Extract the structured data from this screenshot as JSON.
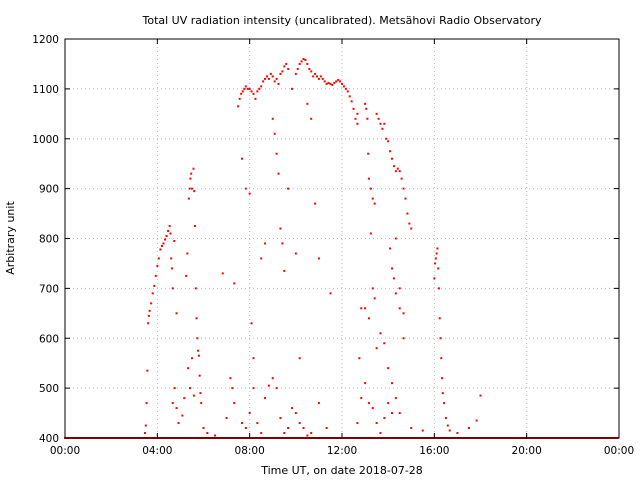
{
  "chart_data": {
    "type": "scatter",
    "title": "Total UV radiation intensity (uncalibrated). Metsähovi Radio Observatory",
    "xlabel": "Time UT, on date 2018-07-28",
    "ylabel": "Arbitrary unit",
    "xlim": [
      "00:00",
      "24:00"
    ],
    "ylim": [
      400,
      1200
    ],
    "x_tick_labels": [
      "00:00",
      "04:00",
      "08:00",
      "12:00",
      "16:00",
      "20:00",
      "00:00"
    ],
    "y_tick_labels": [
      "400",
      "500",
      "600",
      "700",
      "800",
      "900",
      "1000",
      "1100",
      "1200"
    ],
    "grid": true,
    "legend": "none",
    "marker_color": "#ff0000",
    "series": [
      {
        "baseline": [
          [
            "00:00",
            400
          ],
          [
            "03:40",
            400
          ],
          [
            "04:00",
            400
          ],
          [
            "04:20",
            400
          ],
          [
            "05:00",
            400
          ],
          [
            "06:00",
            400
          ],
          [
            "07:00",
            400
          ],
          [
            "08:00",
            400
          ],
          [
            "09:00",
            400
          ],
          [
            "10:00",
            400
          ],
          [
            "11:00",
            400
          ],
          [
            "12:00",
            400
          ],
          [
            "13:00",
            400
          ],
          [
            "14:00",
            400
          ],
          [
            "15:00",
            400
          ],
          [
            "16:00",
            400
          ],
          [
            "17:00",
            400
          ],
          [
            "18:00",
            400
          ],
          [
            "19:00",
            400
          ],
          [
            "20:00",
            400
          ],
          [
            "21:00",
            400
          ],
          [
            "22:00",
            400
          ],
          [
            "23:00",
            400
          ],
          [
            "24:00",
            400
          ]
        ],
        "rise": [
          [
            "03:28",
            410
          ],
          [
            "03:30",
            425
          ],
          [
            "03:32",
            470
          ],
          [
            "03:34",
            535
          ],
          [
            "03:36",
            630
          ],
          [
            "03:38",
            645
          ],
          [
            "03:40",
            655
          ],
          [
            "03:44",
            670
          ],
          [
            "03:48",
            690
          ],
          [
            "03:52",
            705
          ],
          [
            "03:56",
            725
          ],
          [
            "04:00",
            745
          ],
          [
            "04:04",
            760
          ],
          [
            "04:08",
            778
          ],
          [
            "04:12",
            785
          ],
          [
            "04:16",
            790
          ],
          [
            "04:20",
            798
          ],
          [
            "04:24",
            805
          ],
          [
            "04:28",
            815
          ],
          [
            "04:32",
            825
          ],
          [
            "04:34",
            810
          ],
          [
            "04:36",
            760
          ],
          [
            "04:38",
            740
          ],
          [
            "04:40",
            700
          ],
          [
            "04:44",
            795
          ],
          [
            "04:50",
            650
          ]
        ],
        "mid_morning": [
          [
            "05:15",
            725
          ],
          [
            "05:18",
            770
          ],
          [
            "05:22",
            880
          ],
          [
            "05:24",
            900
          ],
          [
            "05:26",
            920
          ],
          [
            "05:28",
            930
          ],
          [
            "05:30",
            900
          ],
          [
            "05:34",
            940
          ],
          [
            "05:36",
            895
          ],
          [
            "05:38",
            825
          ],
          [
            "05:40",
            700
          ],
          [
            "05:42",
            640
          ],
          [
            "05:44",
            600
          ],
          [
            "05:46",
            575
          ],
          [
            "05:48",
            565
          ],
          [
            "05:50",
            525
          ],
          [
            "05:52",
            490
          ],
          [
            "05:54",
            470
          ],
          [
            "05:20",
            540
          ],
          [
            "05:30",
            560
          ],
          [
            "05:10",
            480
          ],
          [
            "05:05",
            445
          ],
          [
            "04:55",
            430
          ],
          [
            "04:45",
            500
          ],
          [
            "04:40",
            470
          ],
          [
            "04:50",
            460
          ],
          [
            "05:25",
            500
          ],
          [
            "05:35",
            485
          ]
        ],
        "main_arc": [
          [
            "07:30",
            1065
          ],
          [
            "07:34",
            1080
          ],
          [
            "07:38",
            1090
          ],
          [
            "07:42",
            1095
          ],
          [
            "07:46",
            1100
          ],
          [
            "07:50",
            1105
          ],
          [
            "07:55",
            1100
          ],
          [
            "08:00",
            1100
          ],
          [
            "08:05",
            1095
          ],
          [
            "08:10",
            1090
          ],
          [
            "08:15",
            1080
          ],
          [
            "08:20",
            1095
          ],
          [
            "08:25",
            1100
          ],
          [
            "08:30",
            1105
          ],
          [
            "08:35",
            1115
          ],
          [
            "08:40",
            1120
          ],
          [
            "08:45",
            1125
          ],
          [
            "08:50",
            1120
          ],
          [
            "08:55",
            1130
          ],
          [
            "09:00",
            1125
          ],
          [
            "09:05",
            1115
          ],
          [
            "09:10",
            1120
          ],
          [
            "09:15",
            1110
          ],
          [
            "09:20",
            1130
          ],
          [
            "09:25",
            1135
          ],
          [
            "09:30",
            1145
          ],
          [
            "09:35",
            1150
          ],
          [
            "09:40",
            1140
          ],
          [
            "09:50",
            1100
          ],
          [
            "10:00",
            1130
          ],
          [
            "10:05",
            1140
          ],
          [
            "10:10",
            1150
          ],
          [
            "10:15",
            1155
          ],
          [
            "10:20",
            1160
          ],
          [
            "10:25",
            1158
          ],
          [
            "10:30",
            1150
          ],
          [
            "10:35",
            1140
          ],
          [
            "10:40",
            1135
          ],
          [
            "10:45",
            1125
          ],
          [
            "10:50",
            1130
          ],
          [
            "10:55",
            1125
          ],
          [
            "11:00",
            1120
          ],
          [
            "11:05",
            1125
          ],
          [
            "11:10",
            1120
          ],
          [
            "11:15",
            1115
          ],
          [
            "11:20",
            1110
          ],
          [
            "11:25",
            1112
          ],
          [
            "11:30",
            1110
          ],
          [
            "11:35",
            1108
          ],
          [
            "11:40",
            1112
          ],
          [
            "11:45",
            1115
          ],
          [
            "11:50",
            1118
          ],
          [
            "11:55",
            1115
          ],
          [
            "12:00",
            1110
          ],
          [
            "12:05",
            1105
          ],
          [
            "12:10",
            1100
          ],
          [
            "12:15",
            1095
          ],
          [
            "12:20",
            1085
          ],
          [
            "12:25",
            1075
          ],
          [
            "12:30",
            1060
          ],
          [
            "12:35",
            1040
          ],
          [
            "12:40",
            1050
          ]
        ],
        "afternoon": [
          [
            "13:00",
            1070
          ],
          [
            "13:03",
            1060
          ],
          [
            "13:06",
            1040
          ],
          [
            "13:08",
            970
          ],
          [
            "13:10",
            920
          ],
          [
            "13:15",
            900
          ],
          [
            "13:20",
            880
          ],
          [
            "13:25",
            870
          ],
          [
            "13:30",
            1050
          ],
          [
            "13:35",
            1040
          ],
          [
            "13:40",
            1030
          ],
          [
            "13:45",
            1020
          ],
          [
            "13:50",
            1030
          ],
          [
            "13:55",
            1000
          ],
          [
            "14:00",
            995
          ],
          [
            "14:05",
            975
          ],
          [
            "14:10",
            960
          ],
          [
            "14:15",
            945
          ],
          [
            "14:20",
            935
          ],
          [
            "14:25",
            940
          ],
          [
            "14:30",
            935
          ],
          [
            "14:35",
            920
          ],
          [
            "14:40",
            900
          ],
          [
            "14:45",
            880
          ],
          [
            "14:50",
            850
          ],
          [
            "14:55",
            830
          ],
          [
            "15:00",
            820
          ],
          [
            "14:05",
            780
          ],
          [
            "14:10",
            740
          ],
          [
            "14:15",
            720
          ],
          [
            "14:20",
            690
          ],
          [
            "14:30",
            660
          ],
          [
            "14:40",
            600
          ]
        ],
        "late_afternoon": [
          [
            "16:00",
            720
          ],
          [
            "16:02",
            750
          ],
          [
            "16:04",
            760
          ],
          [
            "16:06",
            770
          ],
          [
            "16:08",
            780
          ],
          [
            "16:10",
            740
          ],
          [
            "16:12",
            700
          ],
          [
            "16:14",
            640
          ],
          [
            "16:16",
            600
          ],
          [
            "16:18",
            560
          ],
          [
            "16:20",
            520
          ],
          [
            "16:22",
            490
          ],
          [
            "16:25",
            470
          ],
          [
            "16:30",
            440
          ],
          [
            "16:35",
            425
          ],
          [
            "16:40",
            415
          ],
          [
            "17:00",
            410
          ],
          [
            "17:30",
            420
          ],
          [
            "17:50",
            435
          ],
          [
            "18:00",
            485
          ]
        ],
        "scattered_low": [
          [
            "06:00",
            420
          ],
          [
            "06:10",
            410
          ],
          [
            "06:30",
            405
          ],
          [
            "07:00",
            440
          ],
          [
            "07:10",
            520
          ],
          [
            "07:15",
            500
          ],
          [
            "07:20",
            470
          ],
          [
            "07:40",
            430
          ],
          [
            "07:50",
            420
          ],
          [
            "08:00",
            450
          ],
          [
            "08:10",
            500
          ],
          [
            "08:20",
            430
          ],
          [
            "08:30",
            410
          ],
          [
            "08:40",
            480
          ],
          [
            "08:50",
            505
          ],
          [
            "09:00",
            520
          ],
          [
            "09:10",
            500
          ],
          [
            "09:20",
            440
          ],
          [
            "09:30",
            410
          ],
          [
            "09:40",
            420
          ],
          [
            "09:50",
            460
          ],
          [
            "10:00",
            450
          ],
          [
            "10:10",
            430
          ],
          [
            "10:20",
            420
          ],
          [
            "10:30",
            405
          ],
          [
            "10:40",
            410
          ],
          [
            "11:00",
            470
          ],
          [
            "11:20",
            420
          ],
          [
            "12:40",
            430
          ],
          [
            "12:50",
            480
          ],
          [
            "13:00",
            510
          ],
          [
            "13:10",
            470
          ],
          [
            "13:20",
            460
          ],
          [
            "13:30",
            430
          ],
          [
            "13:40",
            410
          ],
          [
            "13:50",
            440
          ],
          [
            "14:00",
            470
          ],
          [
            "14:10",
            510
          ],
          [
            "14:20",
            480
          ],
          [
            "14:30",
            450
          ],
          [
            "15:00",
            420
          ],
          [
            "15:30",
            415
          ]
        ],
        "scattered_mid": [
          [
            "06:50",
            730
          ],
          [
            "07:20",
            710
          ],
          [
            "07:40",
            960
          ],
          [
            "07:50",
            900
          ],
          [
            "08:00",
            890
          ],
          [
            "08:05",
            630
          ],
          [
            "08:10",
            560
          ],
          [
            "08:30",
            760
          ],
          [
            "08:40",
            790
          ],
          [
            "09:00",
            1040
          ],
          [
            "09:05",
            1010
          ],
          [
            "09:10",
            970
          ],
          [
            "09:15",
            930
          ],
          [
            "09:20",
            820
          ],
          [
            "09:25",
            790
          ],
          [
            "09:30",
            735
          ],
          [
            "09:40",
            900
          ],
          [
            "10:00",
            770
          ],
          [
            "10:10",
            560
          ],
          [
            "10:30",
            1070
          ],
          [
            "10:40",
            1040
          ],
          [
            "10:50",
            870
          ],
          [
            "11:00",
            760
          ],
          [
            "11:30",
            690
          ],
          [
            "12:40",
            1030
          ],
          [
            "12:45",
            560
          ],
          [
            "12:50",
            660
          ],
          [
            "13:00",
            660
          ],
          [
            "13:10",
            640
          ],
          [
            "13:15",
            810
          ],
          [
            "13:20",
            700
          ],
          [
            "13:25",
            680
          ],
          [
            "13:30",
            580
          ],
          [
            "13:40",
            610
          ],
          [
            "13:50",
            590
          ],
          [
            "14:00",
            540
          ],
          [
            "14:10",
            450
          ],
          [
            "14:20",
            800
          ],
          [
            "14:30",
            700
          ],
          [
            "14:40",
            650
          ]
        ]
      }
    ]
  }
}
